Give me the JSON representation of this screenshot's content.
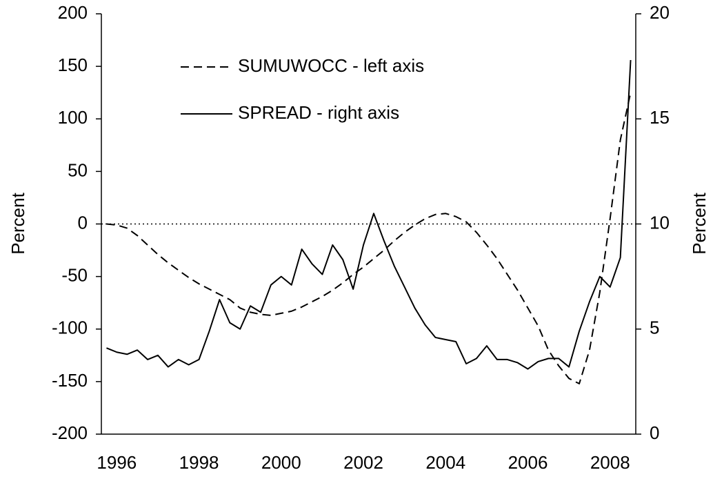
{
  "chart_data": {
    "type": "line",
    "ylabel": "Percent",
    "y2label": "Percent",
    "categories": [
      null,
      "1996",
      null,
      null,
      null,
      null,
      null,
      null,
      null,
      "1998",
      null,
      null,
      null,
      null,
      null,
      null,
      null,
      "2000",
      null,
      null,
      null,
      null,
      null,
      null,
      null,
      "2002",
      null,
      null,
      null,
      null,
      null,
      null,
      null,
      "2004",
      null,
      null,
      null,
      null,
      null,
      null,
      null,
      "2006",
      null,
      null,
      null,
      null,
      null,
      null,
      null,
      "2008",
      null,
      null
    ],
    "series": [
      {
        "name": "SUMUWOCC - left axis",
        "color": "#000000",
        "dashed": true,
        "axis": "y",
        "values": [
          0,
          -1,
          -4,
          -11,
          -20,
          -29,
          -37,
          -44,
          -51,
          -57,
          -62,
          -67,
          -72,
          -80,
          -84,
          -86,
          -87,
          -85,
          -83,
          -79,
          -74,
          -69,
          -63,
          -56,
          -48,
          -41,
          -33,
          -25,
          -16,
          -8,
          -1,
          5,
          9,
          10,
          7,
          2,
          -8,
          -20,
          -33,
          -48,
          -63,
          -80,
          -97,
          -120,
          -135,
          -147,
          -152,
          -120,
          -65,
          5,
          80,
          125
        ]
      },
      {
        "name": "SPREAD - right axis",
        "color": "#000000",
        "dashed": false,
        "axis": "y2",
        "values": [
          4.1,
          3.9,
          3.8,
          4.0,
          3.55,
          3.75,
          3.2,
          3.55,
          3.3,
          3.55,
          4.9,
          6.4,
          5.3,
          5.0,
          6.1,
          5.8,
          7.1,
          7.5,
          7.1,
          8.8,
          8.1,
          7.6,
          9.0,
          8.3,
          6.9,
          9.0,
          10.5,
          9.2,
          8.0,
          7.0,
          6.0,
          5.2,
          4.6,
          4.5,
          4.4,
          3.35,
          3.6,
          4.2,
          3.55,
          3.55,
          3.4,
          3.1,
          3.45,
          3.6,
          3.6,
          3.2,
          4.9,
          6.3,
          7.5,
          7.0,
          8.4,
          17.8
        ]
      }
    ],
    "ylim": [
      -200,
      200
    ],
    "yticks": [
      -200,
      -150,
      -100,
      -50,
      0,
      50,
      100,
      150,
      200
    ],
    "y2lim": [
      0,
      20
    ],
    "y2ticks": [
      0,
      5,
      10,
      15,
      20
    ],
    "reference_line": 0,
    "legend": "upper-left"
  }
}
